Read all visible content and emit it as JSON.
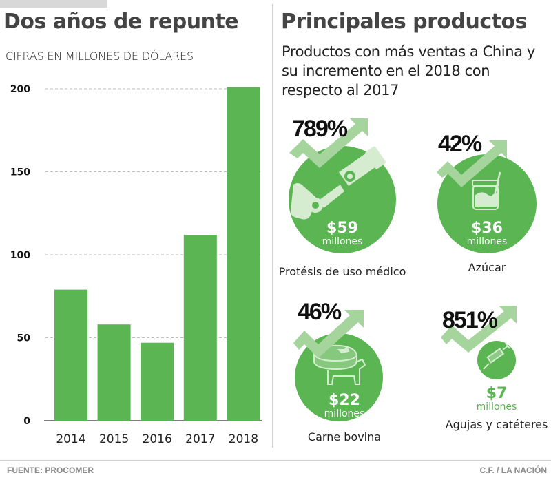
{
  "left_panel": {
    "title": "Dos años de repunte",
    "subtitle": "CIFRAS EN MILLONES DE DÓLARES"
  },
  "right_panel": {
    "title": "Principales productos",
    "subtitle": "Productos con más ventas a China y su incremento en el 2018 con respecto al 2017",
    "products": [
      {
        "name": "Protésis de uso médico",
        "increase": "789%",
        "amount": "$59",
        "unit": "millones",
        "icon": "prosthetic-leg-icon"
      },
      {
        "name": "Azúcar",
        "increase": "42%",
        "amount": "$36",
        "unit": "millones",
        "icon": "sugar-jar-icon"
      },
      {
        "name": "Carne bovina",
        "increase": "46%",
        "amount": "$22",
        "unit": "millones",
        "icon": "beef-cow-icon"
      },
      {
        "name": "Agujas y catéteres",
        "increase": "851%",
        "amount": "$7",
        "unit": "millones",
        "icon": "syringe-icon"
      }
    ]
  },
  "footer": {
    "source": "FUENTE: PROCOMER",
    "credit": "C.F. / LA NACIÓN"
  },
  "colors": {
    "bar": "#5ab552",
    "circle": "#5ab552",
    "arrow": "#a5d49c",
    "icon": "#d6ecd1",
    "title": "#444444"
  },
  "chart_data": {
    "type": "bar",
    "title": "Dos años de repunte",
    "subtitle": "CIFRAS EN MILLONES DE DÓLARES",
    "xlabel": "",
    "ylabel": "",
    "categories": [
      "2014",
      "2015",
      "2016",
      "2017",
      "2018"
    ],
    "values": [
      79,
      58,
      47,
      112,
      201
    ],
    "ylim": [
      0,
      200
    ],
    "yticks": [
      0,
      50,
      100,
      150,
      200
    ],
    "ytick_labels": [
      "0",
      "50",
      "100",
      "150",
      "200"
    ],
    "grid": true,
    "legend": "none"
  }
}
